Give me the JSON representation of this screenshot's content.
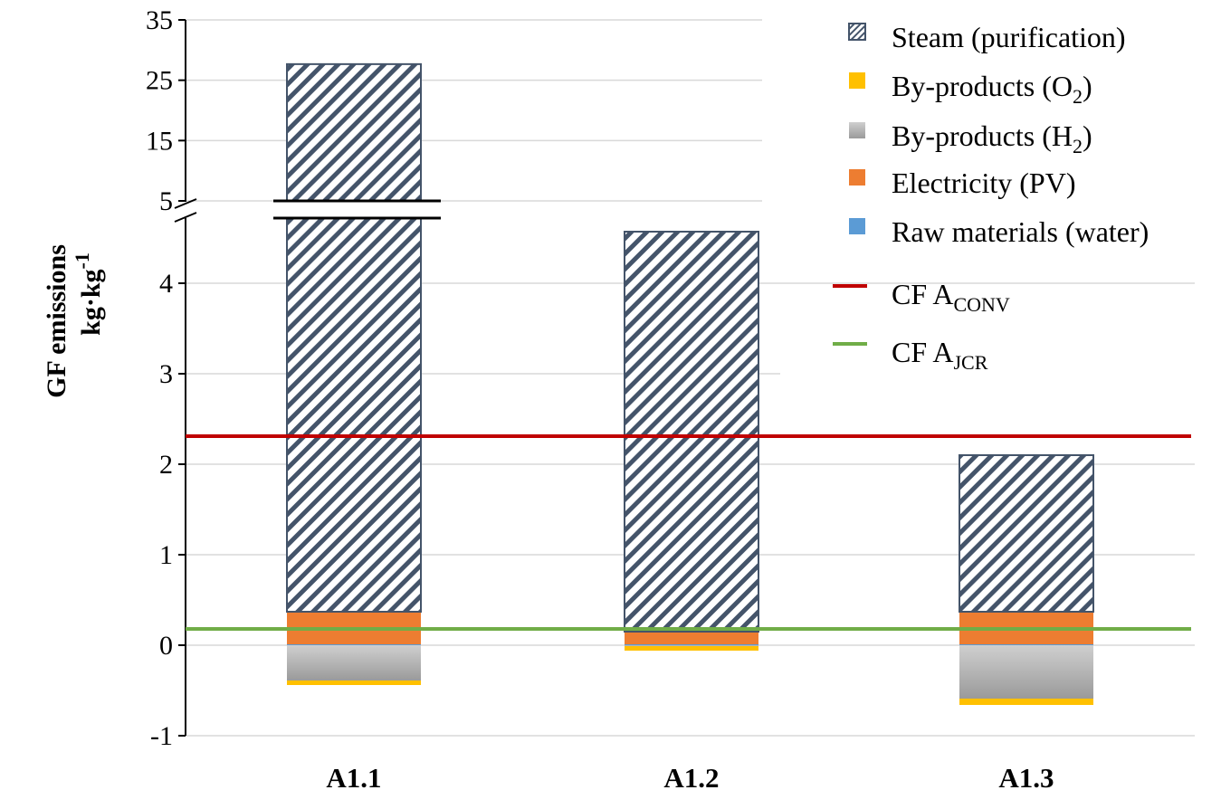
{
  "chart_data": {
    "type": "bar",
    "stacked": true,
    "broken_axis": true,
    "categories": [
      "A1.1",
      "A1.2",
      "A1.3"
    ],
    "ylabel_lines": [
      "GF emissions",
      "kg·kg"
    ],
    "ylabel_unit_exponent": "-1",
    "y_ticks_lower": [
      "-1",
      "0",
      "1",
      "2",
      "3",
      "4"
    ],
    "y_ticks_upper": [
      "5",
      "15",
      "25",
      "35"
    ],
    "ylim_lower": [
      -1,
      4.6
    ],
    "ylim_upper": [
      5,
      35
    ],
    "grid": true,
    "legend_position": "top-right",
    "series": [
      {
        "name": "Raw materials (water)",
        "color": "#5B9BD5",
        "values": [
          0.01,
          0.01,
          0.01
        ]
      },
      {
        "name": "Electricity (PV)",
        "color": "#ED7D31",
        "values": [
          0.36,
          0.14,
          0.36
        ]
      },
      {
        "name": "By-products (H2)",
        "color": "#A5A5A5",
        "values": [
          -0.39,
          -0.01,
          -0.59
        ]
      },
      {
        "name": "By-products (O2)",
        "color": "#FFC000",
        "values": [
          -0.05,
          -0.05,
          -0.07
        ]
      },
      {
        "name": "Steam (purification)",
        "color": "#44546A",
        "pattern": "diagonal-hatch",
        "values": [
          27.3,
          4.42,
          1.73
        ]
      }
    ],
    "reference_lines": [
      {
        "name": "CF A",
        "subscript": "CONV",
        "value": 2.31,
        "color": "#C00000"
      },
      {
        "name": "CF A",
        "subscript": "JCR",
        "value": 0.18,
        "color": "#70AD47"
      }
    ],
    "legend": [
      {
        "kind": "patch",
        "series": "Steam (purification)",
        "text": "Steam (purification)",
        "sub": "",
        "tail": ""
      },
      {
        "kind": "patch",
        "series": "By-products (O2)",
        "text": "By-products (O",
        "sub": "2",
        "tail": ")"
      },
      {
        "kind": "patch",
        "series": "By-products (H2)",
        "text": "By-products (H",
        "sub": "2",
        "tail": ")"
      },
      {
        "kind": "patch",
        "series": "Electricity (PV)",
        "text": "Electricity (PV)",
        "sub": "",
        "tail": ""
      },
      {
        "kind": "patch",
        "series": "Raw materials (water)",
        "text": "Raw materials (water)",
        "sub": "",
        "tail": ""
      },
      {
        "kind": "line",
        "series": "CF A CONV",
        "text": "CF A",
        "sub": "CONV",
        "tail": ""
      },
      {
        "kind": "line",
        "series": "CF A JCR",
        "text": "CF A",
        "sub": "JCR",
        "tail": ""
      }
    ]
  }
}
